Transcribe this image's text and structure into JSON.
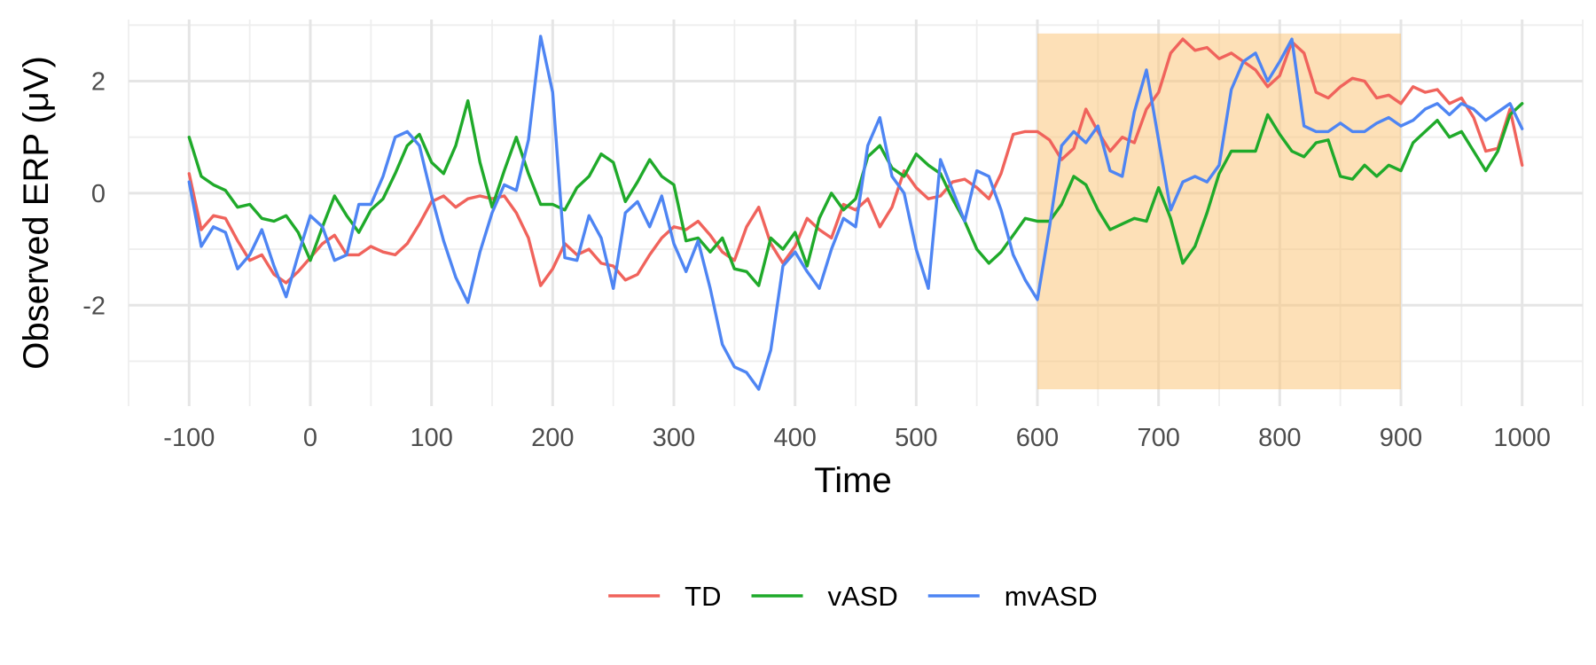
{
  "chart_data": {
    "type": "line",
    "title": "",
    "xlabel": "Time",
    "ylabel": "Observed ERP (μV)",
    "xlim": [
      -150,
      1050
    ],
    "ylim": [
      -3.8,
      3.1
    ],
    "x_ticks": [
      -100,
      0,
      100,
      200,
      300,
      400,
      500,
      600,
      700,
      800,
      900,
      1000
    ],
    "x_tick_labels": [
      "-100",
      "0",
      "100",
      "200",
      "300",
      "400",
      "500",
      "600",
      "700",
      "800",
      "900",
      "1000"
    ],
    "y_ticks": [
      -2,
      0,
      2
    ],
    "y_tick_labels": [
      "-2",
      "0",
      "2"
    ],
    "grid": true,
    "legend_position": "bottom",
    "highlight_region": {
      "x": [
        600,
        900
      ],
      "y": [
        -3.5,
        2.85
      ],
      "color": "#fbc67c",
      "opacity": 0.55
    },
    "series": [
      {
        "name": "TD",
        "color": "#f0635c",
        "x": [
          -100,
          -90,
          -80,
          -70,
          -60,
          -50,
          -40,
          -30,
          -20,
          -10,
          0,
          10,
          20,
          30,
          40,
          50,
          60,
          70,
          80,
          90,
          100,
          110,
          120,
          130,
          140,
          150,
          160,
          170,
          180,
          190,
          200,
          210,
          220,
          230,
          240,
          250,
          260,
          270,
          280,
          290,
          300,
          310,
          320,
          330,
          340,
          350,
          360,
          370,
          380,
          390,
          400,
          410,
          420,
          430,
          440,
          450,
          460,
          470,
          480,
          490,
          500,
          510,
          520,
          530,
          540,
          550,
          560,
          570,
          580,
          590,
          600,
          610,
          620,
          630,
          640,
          650,
          660,
          670,
          680,
          690,
          700,
          710,
          720,
          730,
          740,
          750,
          760,
          770,
          780,
          790,
          800,
          810,
          820,
          830,
          840,
          850,
          860,
          870,
          880,
          890,
          900,
          910,
          920,
          930,
          940,
          950,
          960,
          970,
          980,
          990,
          1000
        ],
        "values": [
          0.35,
          -0.65,
          -0.4,
          -0.45,
          -0.85,
          -1.2,
          -1.1,
          -1.45,
          -1.6,
          -1.4,
          -1.15,
          -0.9,
          -0.75,
          -1.1,
          -1.1,
          -0.95,
          -1.05,
          -1.1,
          -0.9,
          -0.55,
          -0.15,
          -0.05,
          -0.25,
          -0.1,
          -0.05,
          -0.1,
          -0.05,
          -0.35,
          -0.8,
          -1.65,
          -1.35,
          -0.9,
          -1.1,
          -1.0,
          -1.25,
          -1.3,
          -1.55,
          -1.45,
          -1.1,
          -0.8,
          -0.6,
          -0.65,
          -0.5,
          -0.75,
          -1.05,
          -1.2,
          -0.6,
          -0.25,
          -0.9,
          -1.25,
          -0.95,
          -0.45,
          -0.65,
          -0.8,
          -0.2,
          -0.3,
          -0.1,
          -0.6,
          -0.25,
          0.4,
          0.1,
          -0.1,
          -0.05,
          0.2,
          0.25,
          0.1,
          -0.1,
          0.35,
          1.05,
          1.1,
          1.1,
          0.95,
          0.6,
          0.8,
          1.5,
          1.1,
          0.75,
          1.0,
          0.9,
          1.5,
          1.8,
          2.5,
          2.75,
          2.55,
          2.6,
          2.4,
          2.5,
          2.35,
          2.2,
          1.9,
          2.1,
          2.7,
          2.5,
          1.8,
          1.7,
          1.9,
          2.05,
          2.0,
          1.7,
          1.75,
          1.6,
          1.9,
          1.8,
          1.85,
          1.6,
          1.7,
          1.35,
          0.75,
          0.8,
          1.5,
          0.5
        ]
      },
      {
        "name": "vASD",
        "color": "#1faa2a",
        "x": [
          -100,
          -90,
          -80,
          -70,
          -60,
          -50,
          -40,
          -30,
          -20,
          -10,
          0,
          10,
          20,
          30,
          40,
          50,
          60,
          70,
          80,
          90,
          100,
          110,
          120,
          130,
          140,
          150,
          160,
          170,
          180,
          190,
          200,
          210,
          220,
          230,
          240,
          250,
          260,
          270,
          280,
          290,
          300,
          310,
          320,
          330,
          340,
          350,
          360,
          370,
          380,
          390,
          400,
          410,
          420,
          430,
          440,
          450,
          460,
          470,
          480,
          490,
          500,
          510,
          520,
          530,
          540,
          550,
          560,
          570,
          580,
          590,
          600,
          610,
          620,
          630,
          640,
          650,
          660,
          670,
          680,
          690,
          700,
          710,
          720,
          730,
          740,
          750,
          760,
          770,
          780,
          790,
          800,
          810,
          820,
          830,
          840,
          850,
          860,
          870,
          880,
          890,
          900,
          910,
          920,
          930,
          940,
          950,
          960,
          970,
          980,
          990,
          1000
        ],
        "values": [
          1.0,
          0.3,
          0.15,
          0.05,
          -0.25,
          -0.2,
          -0.45,
          -0.5,
          -0.4,
          -0.7,
          -1.2,
          -0.6,
          -0.05,
          -0.4,
          -0.7,
          -0.3,
          -0.1,
          0.35,
          0.85,
          1.05,
          0.55,
          0.35,
          0.85,
          1.65,
          0.55,
          -0.25,
          0.4,
          1.0,
          0.35,
          -0.2,
          -0.2,
          -0.3,
          0.1,
          0.3,
          0.7,
          0.55,
          -0.15,
          0.2,
          0.6,
          0.3,
          0.15,
          -0.85,
          -0.8,
          -1.05,
          -0.8,
          -1.35,
          -1.4,
          -1.65,
          -0.8,
          -1.0,
          -0.7,
          -1.3,
          -0.45,
          0.0,
          -0.3,
          -0.1,
          0.65,
          0.85,
          0.45,
          0.3,
          0.7,
          0.5,
          0.35,
          -0.1,
          -0.5,
          -1.0,
          -1.25,
          -1.05,
          -0.75,
          -0.45,
          -0.5,
          -0.5,
          -0.2,
          0.3,
          0.15,
          -0.3,
          -0.65,
          -0.55,
          -0.45,
          -0.5,
          0.1,
          -0.45,
          -1.25,
          -0.95,
          -0.35,
          0.35,
          0.75,
          0.75,
          0.75,
          1.4,
          1.05,
          0.75,
          0.65,
          0.9,
          0.95,
          0.3,
          0.25,
          0.5,
          0.3,
          0.5,
          0.4,
          0.9,
          1.1,
          1.3,
          1.0,
          1.1,
          0.75,
          0.4,
          0.75,
          1.4,
          1.6
        ]
      },
      {
        "name": "mvASD",
        "color": "#4e85f3",
        "x": [
          -100,
          -90,
          -80,
          -70,
          -60,
          -50,
          -40,
          -30,
          -20,
          -10,
          0,
          10,
          20,
          30,
          40,
          50,
          60,
          70,
          80,
          90,
          100,
          110,
          120,
          130,
          140,
          150,
          160,
          170,
          180,
          190,
          200,
          210,
          220,
          230,
          240,
          250,
          260,
          270,
          280,
          290,
          300,
          310,
          320,
          330,
          340,
          350,
          360,
          370,
          380,
          390,
          400,
          410,
          420,
          430,
          440,
          450,
          460,
          470,
          480,
          490,
          500,
          510,
          520,
          530,
          540,
          550,
          560,
          570,
          580,
          590,
          600,
          610,
          620,
          630,
          640,
          650,
          660,
          670,
          680,
          690,
          700,
          710,
          720,
          730,
          740,
          750,
          760,
          770,
          780,
          790,
          800,
          810,
          820,
          830,
          840,
          850,
          860,
          870,
          880,
          890,
          900,
          910,
          920,
          930,
          940,
          950,
          960,
          970,
          980,
          990,
          1000
        ],
        "values": [
          0.2,
          -0.95,
          -0.6,
          -0.7,
          -1.35,
          -1.1,
          -0.65,
          -1.3,
          -1.85,
          -1.1,
          -0.4,
          -0.6,
          -1.2,
          -1.1,
          -0.2,
          -0.2,
          0.3,
          1.0,
          1.1,
          0.85,
          -0.05,
          -0.85,
          -1.5,
          -1.95,
          -1.05,
          -0.35,
          0.15,
          0.05,
          0.95,
          2.8,
          1.8,
          -1.15,
          -1.2,
          -0.4,
          -0.8,
          -1.7,
          -0.35,
          -0.15,
          -0.6,
          -0.05,
          -0.9,
          -1.4,
          -0.85,
          -1.7,
          -2.7,
          -3.1,
          -3.2,
          -3.5,
          -2.8,
          -1.3,
          -1.05,
          -1.4,
          -1.7,
          -1.0,
          -0.45,
          -0.6,
          0.85,
          1.35,
          0.3,
          0.0,
          -1.0,
          -1.7,
          0.6,
          0.05,
          -0.5,
          0.4,
          0.3,
          -0.3,
          -1.1,
          -1.55,
          -1.9,
          -0.6,
          0.85,
          1.1,
          0.9,
          1.2,
          0.4,
          0.3,
          1.45,
          2.2,
          0.95,
          -0.3,
          0.2,
          0.3,
          0.2,
          0.5,
          1.85,
          2.35,
          2.5,
          2.0,
          2.35,
          2.75,
          1.2,
          1.1,
          1.1,
          1.25,
          1.1,
          1.1,
          1.25,
          1.35,
          1.2,
          1.3,
          1.5,
          1.6,
          1.4,
          1.6,
          1.5,
          1.3,
          1.45,
          1.6,
          1.15
        ]
      }
    ]
  }
}
